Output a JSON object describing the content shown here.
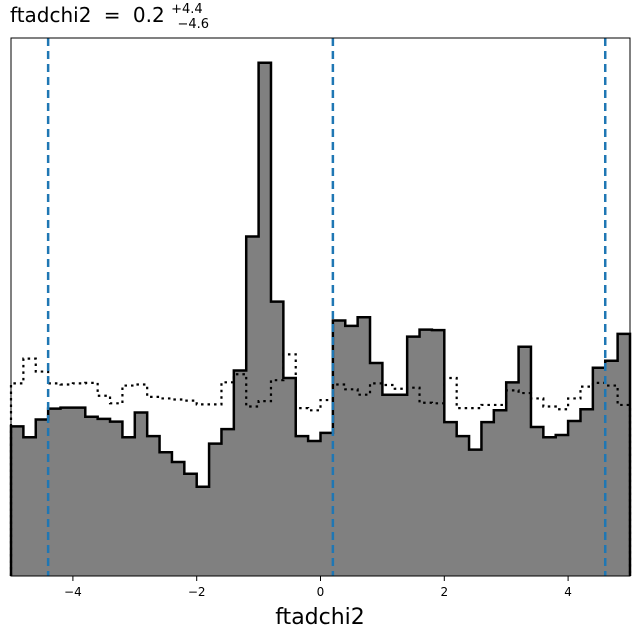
{
  "chart_data": {
    "type": "histogram",
    "title": {
      "lhs": "ftadchi2",
      "equals": "=",
      "value": "0.2",
      "upper": "+4.4",
      "lower": "−4.6"
    },
    "xlabel": "ftadchi2",
    "ylabel": "",
    "xlim": [
      -5,
      5
    ],
    "ylim": [
      0,
      1.0
    ],
    "xticks": [
      -4,
      -2,
      0,
      2,
      4
    ],
    "xtick_labels": [
      "−4",
      "−2",
      "0",
      "2",
      "4"
    ],
    "show_yticks": false,
    "grid": false,
    "bin_edges": [
      -5,
      -4.8,
      -4.6,
      -4.4,
      -4.2,
      -4,
      -3.8,
      -3.6,
      -3.4,
      -3.2,
      -3,
      -2.8,
      -2.6,
      -2.4,
      -2.2,
      -2,
      -1.8,
      -1.6,
      -1.4,
      -1.2,
      -1,
      -0.8,
      -0.6,
      -0.4,
      -0.2,
      0,
      0.2,
      0.4,
      0.6,
      0.8,
      1,
      1.2,
      1.4,
      1.6,
      1.8,
      2,
      2.2,
      2.4,
      2.6,
      2.8,
      3,
      3.2,
      3.4,
      3.6,
      3.8,
      4,
      4.2,
      4.4,
      4.6,
      4.8,
      5
    ],
    "series": [
      {
        "style": "filled",
        "fill_color": "#808080",
        "edge_color": "#000000",
        "values": [
          0.278,
          0.258,
          0.291,
          0.311,
          0.313,
          0.313,
          0.296,
          0.292,
          0.287,
          0.258,
          0.304,
          0.26,
          0.23,
          0.212,
          0.19,
          0.166,
          0.246,
          0.273,
          0.382,
          0.631,
          0.954,
          0.51,
          0.368,
          0.26,
          0.251,
          0.266,
          0.475,
          0.465,
          0.481,
          0.396,
          0.337,
          0.337,
          0.445,
          0.458,
          0.457,
          0.286,
          0.26,
          0.235,
          0.286,
          0.308,
          0.36,
          0.426,
          0.277,
          0.258,
          0.262,
          0.288,
          0.31,
          0.387,
          0.4,
          0.45
        ]
      },
      {
        "style": "dotted",
        "edge_color": "#000000",
        "values": [
          0.358,
          0.404,
          0.38,
          0.358,
          0.356,
          0.358,
          0.359,
          0.335,
          0.321,
          0.354,
          0.356,
          0.333,
          0.33,
          0.328,
          0.326,
          0.319,
          0.319,
          0.36,
          0.375,
          0.315,
          0.325,
          0.364,
          0.412,
          0.312,
          0.308,
          0.327,
          0.356,
          0.347,
          0.337,
          0.358,
          0.355,
          0.348,
          0.35,
          0.322,
          0.321,
          0.368,
          0.312,
          0.312,
          0.318,
          0.318,
          0.345,
          0.34,
          0.33,
          0.315,
          0.31,
          0.33,
          0.352,
          0.359,
          0.354,
          0.318
        ]
      }
    ],
    "vlines": [
      {
        "x": -4.4,
        "style": "dashed",
        "color": "#1f77b4"
      },
      {
        "x": 0.2,
        "style": "dashed",
        "color": "#1f77b4"
      },
      {
        "x": 4.6,
        "style": "dashed",
        "color": "#1f77b4"
      }
    ]
  }
}
